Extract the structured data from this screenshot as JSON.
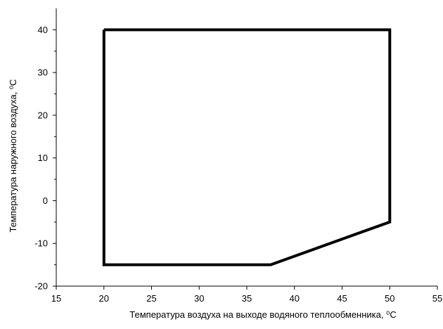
{
  "chart_data": {
    "type": "line",
    "xlabel": "Температура воздуха на выходе водяного теплообменника, ⁰С",
    "ylabel": "Температура наружного воздуха, ⁰С",
    "xlim": [
      15,
      55
    ],
    "ylim": [
      -20,
      45
    ],
    "x_ticks": [
      15,
      20,
      25,
      30,
      35,
      40,
      45,
      50,
      55
    ],
    "y_ticks": [
      -20,
      -10,
      0,
      10,
      20,
      30,
      40
    ],
    "grid": false,
    "series": [
      {
        "points": [
          {
            "x": 20,
            "y": 40
          },
          {
            "x": 50,
            "y": 40
          },
          {
            "x": 50,
            "y": -5
          },
          {
            "x": 37.5,
            "y": -15
          },
          {
            "x": 20,
            "y": -15
          },
          {
            "x": 20,
            "y": 40
          }
        ],
        "color": "#000000"
      }
    ]
  }
}
